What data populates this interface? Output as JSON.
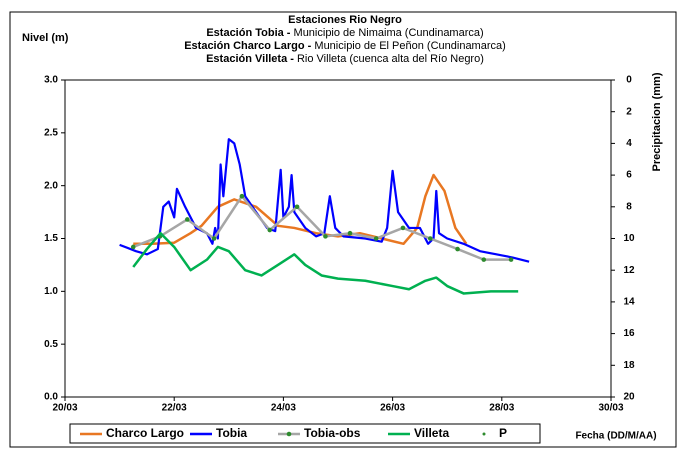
{
  "chart_data": {
    "type": "line",
    "title": "Estaciones Rio Negro",
    "title_lines": [
      {
        "bold": "Estación Tobia - ",
        "text": "Municipio de Nimaima (Cundinamarca)"
      },
      {
        "bold": "Estación Charco Largo - ",
        "text": "Municipio de El Peñon (Cundinamarca)"
      },
      {
        "bold": "Estación Villeta - ",
        "text": "Rio Villeta (cuenca alta del Río Negro)"
      }
    ],
    "ylabel": "Nivel (m)",
    "y2label": "Precipitacion (mm)",
    "xlabel": "Fecha (DD/M/AA)",
    "xlim": [
      20,
      30
    ],
    "xticks": [
      {
        "value": 20,
        "label": "20/03"
      },
      {
        "value": 22,
        "label": "22/03"
      },
      {
        "value": 24,
        "label": "24/03"
      },
      {
        "value": 26,
        "label": "26/03"
      },
      {
        "value": 28,
        "label": "28/03"
      },
      {
        "value": 30,
        "label": "30/03"
      }
    ],
    "ylim": [
      0,
      3
    ],
    "yticks": [
      {
        "value": 0,
        "label": "0.0"
      },
      {
        "value": 0.5,
        "label": "0.5"
      },
      {
        "value": 1,
        "label": "1.0"
      },
      {
        "value": 1.5,
        "label": "1.5"
      },
      {
        "value": 2,
        "label": "2.0"
      },
      {
        "value": 2.5,
        "label": "2.5"
      },
      {
        "value": 3,
        "label": "3.0"
      }
    ],
    "y2lim": [
      0,
      20
    ],
    "y2ticks": [
      0,
      2,
      4,
      6,
      8,
      10,
      12,
      14,
      16,
      18,
      20
    ],
    "y2_inverted": true,
    "legend": "bottom",
    "series": [
      {
        "name": "Charco Largo",
        "color": "#e87722",
        "marker": false,
        "x": [
          21.25,
          21.6,
          22.0,
          22.3,
          22.5,
          22.8,
          23.1,
          23.5,
          23.9,
          24.2,
          24.6,
          25.0,
          25.4,
          25.8,
          26.2,
          26.45,
          26.6,
          26.75,
          26.95,
          27.15,
          27.35
        ],
        "values": [
          1.45,
          1.45,
          1.46,
          1.55,
          1.62,
          1.8,
          1.87,
          1.8,
          1.62,
          1.6,
          1.55,
          1.52,
          1.55,
          1.5,
          1.45,
          1.6,
          1.9,
          2.1,
          1.95,
          1.6,
          1.45
        ]
      },
      {
        "name": "Tobia",
        "color": "#0000ff",
        "marker": false,
        "x": [
          21.0,
          21.3,
          21.5,
          21.7,
          21.8,
          21.9,
          22.0,
          22.05,
          22.2,
          22.4,
          22.6,
          22.7,
          22.75,
          22.8,
          22.85,
          22.9,
          23.0,
          23.1,
          23.2,
          23.3,
          23.5,
          23.7,
          23.85,
          23.95,
          24.0,
          24.1,
          24.15,
          24.2,
          24.4,
          24.6,
          24.75,
          24.85,
          24.95,
          25.1,
          25.5,
          25.8,
          25.9,
          26.0,
          26.1,
          26.3,
          26.5,
          26.65,
          26.75,
          26.8,
          26.85,
          27.0,
          27.3,
          27.6,
          27.9,
          28.2,
          28.5
        ],
        "values": [
          1.44,
          1.38,
          1.35,
          1.4,
          1.8,
          1.85,
          1.7,
          1.97,
          1.8,
          1.6,
          1.55,
          1.45,
          1.6,
          1.5,
          2.2,
          1.9,
          2.44,
          2.4,
          2.2,
          1.9,
          1.75,
          1.6,
          1.57,
          2.15,
          1.7,
          1.8,
          2.1,
          1.75,
          1.6,
          1.52,
          1.55,
          1.9,
          1.6,
          1.52,
          1.5,
          1.47,
          1.6,
          2.14,
          1.75,
          1.6,
          1.6,
          1.45,
          1.5,
          1.95,
          1.55,
          1.5,
          1.45,
          1.38,
          1.35,
          1.32,
          1.28
        ]
      },
      {
        "name": "Tobia-obs",
        "color": "#a6a6a6",
        "marker": true,
        "marker_color": "#2e8b2e",
        "x": [
          21.25,
          21.74,
          22.24,
          22.73,
          23.24,
          23.75,
          24.25,
          24.77,
          25.22,
          25.7,
          26.19,
          26.69,
          27.19,
          27.67,
          28.17
        ],
        "values": [
          1.42,
          1.52,
          1.68,
          1.5,
          1.9,
          1.58,
          1.8,
          1.52,
          1.55,
          1.5,
          1.6,
          1.5,
          1.4,
          1.3,
          1.3
        ]
      },
      {
        "name": "Villeta",
        "color": "#00b050",
        "marker": false,
        "x": [
          21.25,
          21.5,
          21.75,
          22.0,
          22.3,
          22.6,
          22.8,
          23.0,
          23.3,
          23.6,
          23.9,
          24.2,
          24.4,
          24.7,
          25.0,
          25.5,
          26.0,
          26.3,
          26.6,
          26.8,
          27.0,
          27.3,
          27.8,
          28.3
        ],
        "values": [
          1.23,
          1.4,
          1.55,
          1.42,
          1.2,
          1.3,
          1.42,
          1.38,
          1.2,
          1.15,
          1.25,
          1.35,
          1.25,
          1.15,
          1.12,
          1.1,
          1.05,
          1.02,
          1.1,
          1.13,
          1.05,
          0.98,
          1.0,
          1.0
        ]
      },
      {
        "name": "P",
        "color": "#2e8b2e",
        "marker": true,
        "line": false,
        "axis": "y2",
        "x": [],
        "values": []
      }
    ]
  }
}
